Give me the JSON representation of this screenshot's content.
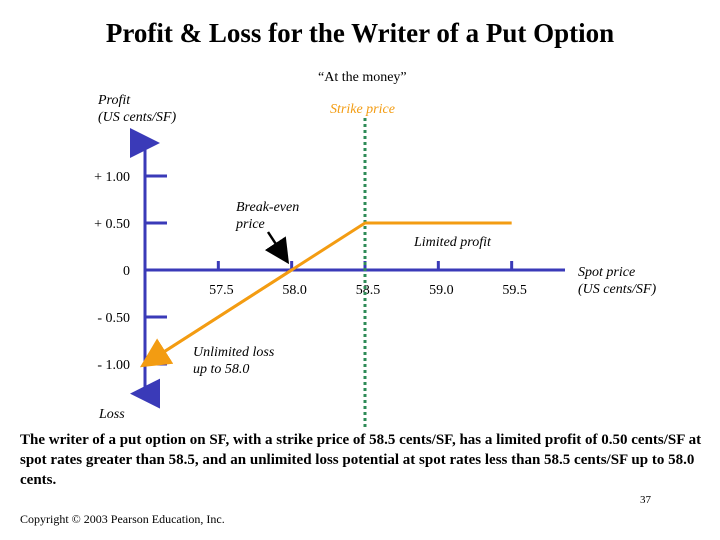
{
  "slide": {
    "title": "Profit & Loss for the Writer of a Put Option",
    "caption": "The writer of a put option on SF, with a strike price of 58.5 cents/SF, has a limited profit of 0.50 cents/SF at spot rates greater than 58.5, and an unlimited loss potential at spot rates less than 58.5 cents/SF up to 58.0 cents.",
    "page_number": "37",
    "copyright": "Copyright © 2003 Pearson Education, Inc."
  },
  "chart_data": {
    "type": "line",
    "ylabel_line1": "Profit",
    "ylabel_line2": "(US cents/SF)",
    "xlabel_line1": "Spot price",
    "xlabel_line2": "(US cents/SF)",
    "bottom_label": "Loss",
    "x_ticks": [
      "57.5",
      "58.0",
      "58.5",
      "59.0",
      "59.5"
    ],
    "x_tick_values": [
      57.5,
      58.0,
      58.5,
      59.0,
      59.5
    ],
    "y_ticks": [
      "+ 1.00",
      "+ 0.50",
      "0",
      "- 0.50",
      "- 1.00"
    ],
    "y_tick_values": [
      1.0,
      0.5,
      0,
      -0.5,
      -1.0
    ],
    "xlim": [
      57.0,
      60.0
    ],
    "ylim": [
      -1.4,
      1.5
    ],
    "strike_price": 58.5,
    "series": [
      {
        "x": [
          57.0,
          58.0,
          58.5,
          59.5
        ],
        "y": [
          -1.0,
          0.0,
          0.5,
          0.5
        ],
        "color": "#f39c12"
      }
    ],
    "annotations": {
      "at_the_money": "“At the money”",
      "strike_price": "Strike price",
      "break_even_line1": "Break-even",
      "break_even_line2": "price",
      "limited_profit": "Limited profit",
      "unlimited_loss_line1": "Unlimited loss",
      "unlimited_loss_line2": "up to 58.0"
    },
    "colors": {
      "axis": "#3a3ab8",
      "payoff": "#f39c12",
      "strike_line": "#2e8b57",
      "arrow": "#000000"
    }
  }
}
